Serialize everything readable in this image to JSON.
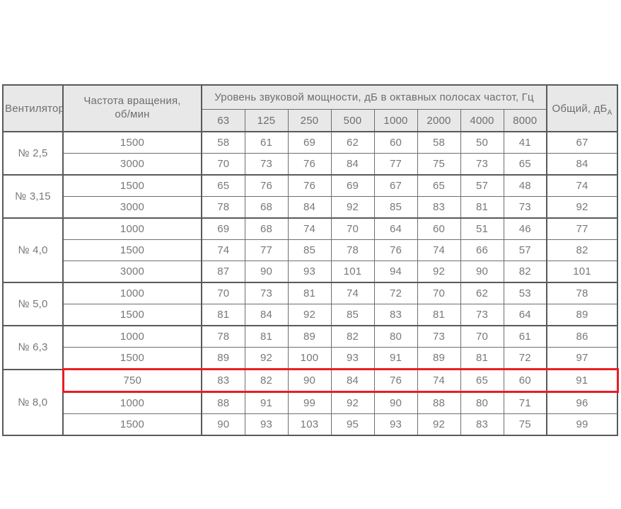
{
  "table": {
    "headers": {
      "fan": "Вентилятор",
      "rpm_line1": "Частота вращения,",
      "rpm_line2": "об/мин",
      "band": "Уровень звуковой мощности, дБ в октавных полосах частот, Гц",
      "frequencies": [
        "63",
        "125",
        "250",
        "500",
        "1000",
        "2000",
        "4000",
        "8000"
      ],
      "total": "Общий, дБ",
      "total_sub": "А"
    },
    "groups": [
      {
        "fan": "№ 2,5",
        "rows": [
          {
            "rpm": "1500",
            "levels": [
              "58",
              "61",
              "69",
              "62",
              "60",
              "58",
              "50",
              "41"
            ],
            "total": "67"
          },
          {
            "rpm": "3000",
            "levels": [
              "70",
              "73",
              "76",
              "84",
              "77",
              "75",
              "73",
              "65"
            ],
            "total": "84"
          }
        ]
      },
      {
        "fan": "№ 3,15",
        "rows": [
          {
            "rpm": "1500",
            "levels": [
              "65",
              "76",
              "76",
              "69",
              "67",
              "65",
              "57",
              "48"
            ],
            "total": "74"
          },
          {
            "rpm": "3000",
            "levels": [
              "78",
              "68",
              "84",
              "92",
              "85",
              "83",
              "81",
              "73"
            ],
            "total": "92"
          }
        ]
      },
      {
        "fan": "№ 4,0",
        "rows": [
          {
            "rpm": "1000",
            "levels": [
              "69",
              "68",
              "74",
              "70",
              "64",
              "60",
              "51",
              "46"
            ],
            "total": "77"
          },
          {
            "rpm": "1500",
            "levels": [
              "74",
              "77",
              "85",
              "78",
              "76",
              "74",
              "66",
              "57"
            ],
            "total": "82"
          },
          {
            "rpm": "3000",
            "levels": [
              "87",
              "90",
              "93",
              "101",
              "94",
              "92",
              "90",
              "82"
            ],
            "total": "101"
          }
        ]
      },
      {
        "fan": "№ 5,0",
        "rows": [
          {
            "rpm": "1000",
            "levels": [
              "70",
              "73",
              "81",
              "74",
              "72",
              "70",
              "62",
              "53"
            ],
            "total": "78"
          },
          {
            "rpm": "1500",
            "levels": [
              "81",
              "84",
              "92",
              "85",
              "83",
              "81",
              "73",
              "64"
            ],
            "total": "89"
          }
        ]
      },
      {
        "fan": "№ 6,3",
        "rows": [
          {
            "rpm": "1000",
            "levels": [
              "78",
              "81",
              "89",
              "82",
              "80",
              "73",
              "70",
              "61"
            ],
            "total": "86"
          },
          {
            "rpm": "1500",
            "levels": [
              "89",
              "92",
              "100",
              "93",
              "91",
              "89",
              "81",
              "72"
            ],
            "total": "97"
          }
        ]
      },
      {
        "fan": "№ 8,0",
        "rows": [
          {
            "rpm": "750",
            "levels": [
              "83",
              "82",
              "90",
              "84",
              "76",
              "74",
              "65",
              "60"
            ],
            "total": "91",
            "highlighted": true
          },
          {
            "rpm": "1000",
            "levels": [
              "88",
              "91",
              "99",
              "92",
              "90",
              "88",
              "80",
              "71"
            ],
            "total": "96"
          },
          {
            "rpm": "1500",
            "levels": [
              "90",
              "93",
              "103",
              "95",
              "93",
              "92",
              "83",
              "75"
            ],
            "total": "99"
          }
        ]
      }
    ],
    "colors": {
      "header_bg": "#e8e8e8",
      "border_thick": "#58595b",
      "border_thin": "#6d6e71",
      "text": "#77787b",
      "highlight_border": "#ec1c24"
    }
  }
}
